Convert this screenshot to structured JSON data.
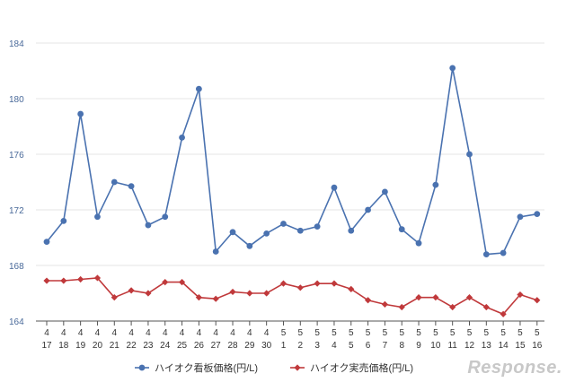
{
  "chart_data": {
    "type": "line",
    "categories": [
      [
        "4",
        "17"
      ],
      [
        "4",
        "18"
      ],
      [
        "4",
        "19"
      ],
      [
        "4",
        "20"
      ],
      [
        "4",
        "21"
      ],
      [
        "4",
        "22"
      ],
      [
        "4",
        "23"
      ],
      [
        "4",
        "24"
      ],
      [
        "4",
        "25"
      ],
      [
        "4",
        "26"
      ],
      [
        "4",
        "27"
      ],
      [
        "4",
        "28"
      ],
      [
        "4",
        "29"
      ],
      [
        "4",
        "30"
      ],
      [
        "5",
        "1"
      ],
      [
        "5",
        "2"
      ],
      [
        "5",
        "3"
      ],
      [
        "5",
        "4"
      ],
      [
        "5",
        "5"
      ],
      [
        "5",
        "6"
      ],
      [
        "5",
        "7"
      ],
      [
        "5",
        "8"
      ],
      [
        "5",
        "9"
      ],
      [
        "5",
        "10"
      ],
      [
        "5",
        "11"
      ],
      [
        "5",
        "12"
      ],
      [
        "5",
        "13"
      ],
      [
        "5",
        "14"
      ],
      [
        "5",
        "15"
      ],
      [
        "5",
        "16"
      ]
    ],
    "series": [
      {
        "name": "ハイオク看板価格(円/L)",
        "color": "#4a72b0",
        "marker": "circle",
        "values": [
          169.7,
          171.2,
          178.9,
          171.5,
          174.0,
          173.7,
          170.9,
          171.5,
          177.2,
          180.7,
          169.0,
          170.4,
          169.4,
          170.3,
          171.0,
          170.5,
          170.8,
          173.6,
          170.5,
          172.0,
          173.3,
          170.6,
          169.6,
          173.8,
          182.2,
          176.0,
          168.8,
          168.9,
          171.5,
          171.7
        ]
      },
      {
        "name": "ハイオク実売価格(円/L)",
        "color": "#c0393b",
        "marker": "diamond",
        "values": [
          166.9,
          166.9,
          167.0,
          167.1,
          165.7,
          166.2,
          166.0,
          166.8,
          166.8,
          165.7,
          165.6,
          166.1,
          166.0,
          166.0,
          166.7,
          166.4,
          166.7,
          166.7,
          166.3,
          165.5,
          165.2,
          165.0,
          165.7,
          165.7,
          165.0,
          165.7,
          165.0,
          164.5,
          165.9,
          165.5
        ]
      }
    ],
    "yticks": [
      164,
      168,
      172,
      176,
      180,
      184
    ],
    "ylim": [
      164,
      184
    ],
    "grid": true,
    "legend": "bottom"
  },
  "logo_text": "Response."
}
